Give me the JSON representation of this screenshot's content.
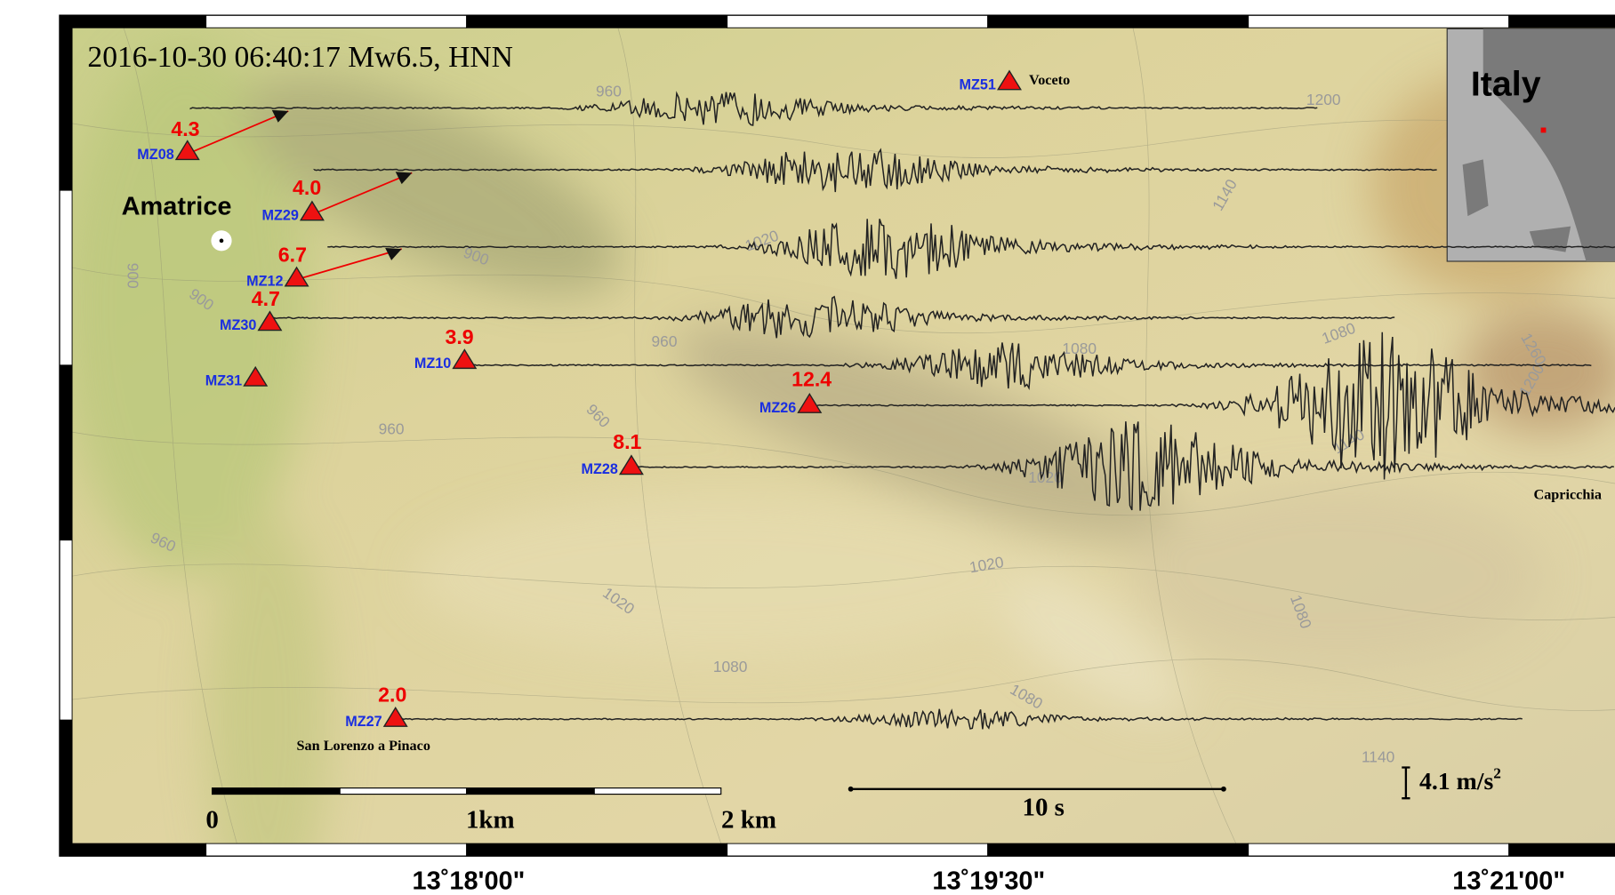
{
  "title": "2016-10-30 06:40:17 Mw6.5, HNN",
  "inset": {
    "label": "Italy"
  },
  "places": [
    "Amatrice",
    "Voceto",
    "San Lorenzo a Pinaco",
    "Capricchia"
  ],
  "stations": [
    {
      "name": "MZ08",
      "pga": "4.3"
    },
    {
      "name": "MZ29",
      "pga": "4.0"
    },
    {
      "name": "MZ12",
      "pga": "6.7"
    },
    {
      "name": "MZ30",
      "pga": "4.7"
    },
    {
      "name": "MZ31"
    },
    {
      "name": "MZ10",
      "pga": "3.9"
    },
    {
      "name": "MZ26",
      "pga": "12.4"
    },
    {
      "name": "MZ28",
      "pga": "8.1"
    },
    {
      "name": "MZ27",
      "pga": "2.0"
    },
    {
      "name": "MZ51"
    }
  ],
  "contour_labels": [
    "960",
    "1200",
    "1140",
    "1020",
    "900",
    "900",
    "900",
    "960",
    "1080",
    "1080",
    "1260",
    "1200",
    "960",
    "960",
    "1140",
    "1020",
    "960",
    "1020",
    "1020",
    "1080",
    "1080",
    "1080",
    "1140"
  ],
  "distance_scale": [
    "0",
    "1km",
    "2 km"
  ],
  "time_scale": "10 s",
  "amplitude_scale": {
    "text": "4.1 m/s",
    "superscript": "2"
  },
  "longitude_labels": [
    "13˚18'00\"",
    "13˚19'30\"",
    "13˚21'00\""
  ]
}
